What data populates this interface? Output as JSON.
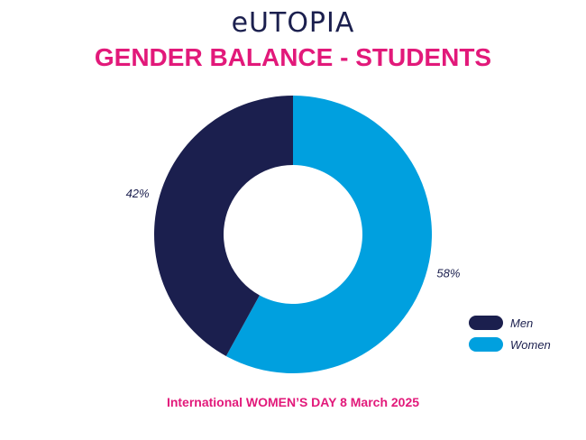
{
  "logo": "eUTOPIA",
  "title": "GENDER BALANCE - STUDENTS",
  "footer": "International WOMEN’S DAY 8 March 2025",
  "colors": {
    "men": "#1b1f4e",
    "women": "#00a0df",
    "accent": "#e2197a"
  },
  "chart_data": {
    "type": "pie",
    "style": "donut",
    "title": "GENDER BALANCE - STUDENTS",
    "categories": [
      "Men",
      "Women"
    ],
    "values": [
      42,
      58
    ],
    "labels": [
      "42%",
      "58%"
    ],
    "colors": [
      "#1b1f4e",
      "#00a0df"
    ],
    "legend": "bottom-right"
  }
}
